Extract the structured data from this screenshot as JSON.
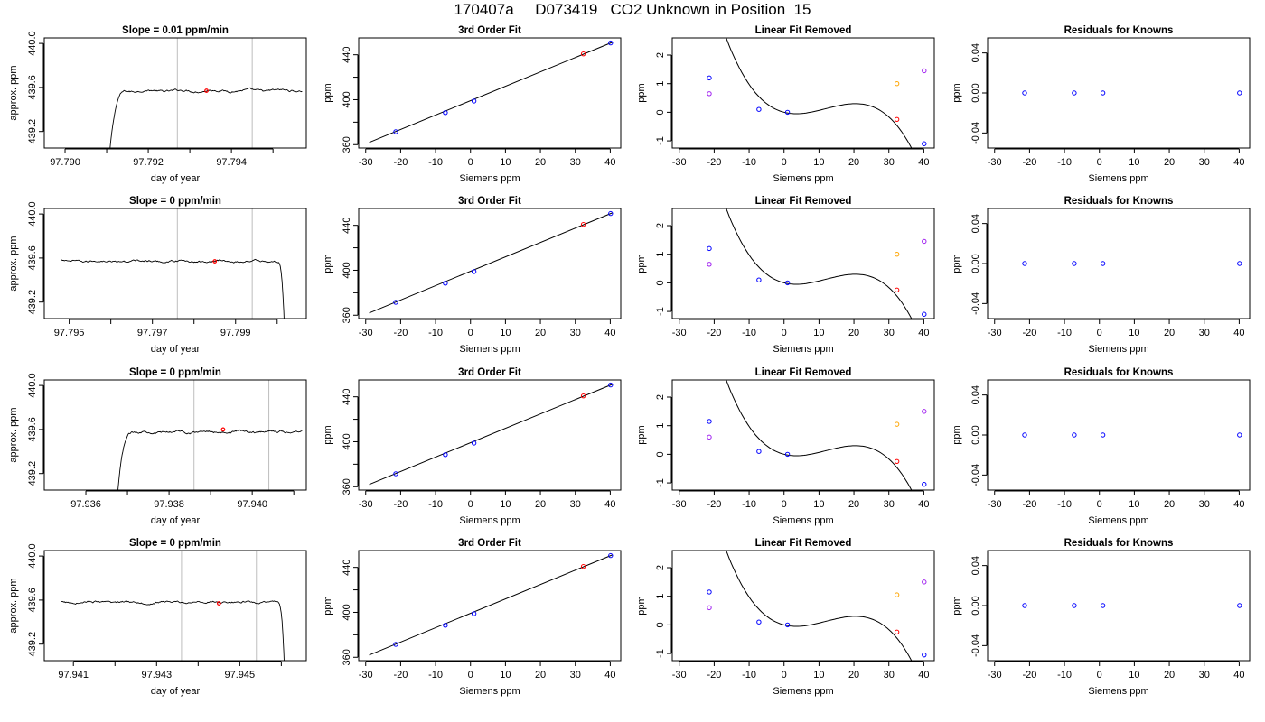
{
  "title": "170407a     D073419   CO2 Unknown in Position  15",
  "colors": {
    "trace": "#000000",
    "marker": "#ff0000",
    "vline": "#bebebe",
    "known": "#0000ff",
    "orange": "#ffa500",
    "purple": "#a020f0",
    "axis": "#000000"
  },
  "chart_data": [
    {
      "type": "line",
      "row": 1,
      "col": 1,
      "title": "Slope =  0.01  ppm/min",
      "xlabel": "day of year",
      "ylabel": "approx. ppm",
      "xlim": [
        97.7895,
        97.7958
      ],
      "ylim": [
        439.05,
        440.05
      ],
      "xticks": [
        97.79,
        97.791,
        97.792,
        97.793,
        97.794,
        97.795
      ],
      "xticklabels": [
        "97.790",
        "",
        "97.792",
        "",
        "97.794",
        ""
      ],
      "yticks": [
        439.2,
        439.6,
        440.0
      ],
      "yticklabels": [
        "439.2",
        "439.6",
        "440.0"
      ],
      "vlines": [
        97.7927,
        97.7945
      ],
      "marker": {
        "x": 97.7934,
        "y": 439.57
      },
      "trace_shape": "rise",
      "trace": {
        "x_start": 97.791,
        "x_end": 97.7957,
        "base": 439.57,
        "rise_width": 0.0005,
        "trend": 0.005
      }
    },
    {
      "type": "line",
      "row": 2,
      "col": 1,
      "title": "Slope =  0  ppm/min",
      "xlabel": "day of year",
      "ylabel": "approx. ppm",
      "xlim": [
        97.7944,
        97.8007
      ],
      "ylim": [
        439.05,
        440.05
      ],
      "xticks": [
        97.795,
        97.796,
        97.797,
        97.798,
        97.799,
        97.8
      ],
      "xticklabels": [
        "97.795",
        "",
        "97.797",
        "",
        "97.799",
        ""
      ],
      "yticks": [
        439.2,
        439.6,
        440.0
      ],
      "yticklabels": [
        "439.2",
        "439.6",
        "440.0"
      ],
      "vlines": [
        97.7976,
        97.7994
      ],
      "marker": {
        "x": 97.7985,
        "y": 439.57
      },
      "trace_shape": "drop",
      "trace": {
        "x_start": 97.7948,
        "x_end": 97.8002,
        "base": 439.57,
        "rise_width": 0.0002,
        "trend": 0.0
      }
    },
    {
      "type": "line",
      "row": 3,
      "col": 1,
      "title": "Slope =  0  ppm/min",
      "xlabel": "day of year",
      "ylabel": "approx. ppm",
      "xlim": [
        97.935,
        97.9413
      ],
      "ylim": [
        439.05,
        440.05
      ],
      "xticks": [
        97.936,
        97.937,
        97.938,
        97.939,
        97.94,
        97.941
      ],
      "xticklabels": [
        "97.936",
        "",
        "97.938",
        "",
        "97.940",
        ""
      ],
      "yticks": [
        439.2,
        439.6,
        440.0
      ],
      "yticklabels": [
        "439.2",
        "439.6",
        "440.0"
      ],
      "vlines": [
        97.9386,
        97.9404
      ],
      "marker": {
        "x": 97.9393,
        "y": 439.6
      },
      "trace_shape": "rise",
      "trace": {
        "x_start": 97.9367,
        "x_end": 97.9412,
        "base": 439.58,
        "rise_width": 0.00045,
        "trend": 0.01
      }
    },
    {
      "type": "line",
      "row": 4,
      "col": 1,
      "title": "Slope =  0  ppm/min",
      "xlabel": "day of year",
      "ylabel": "approx. ppm",
      "xlim": [
        97.9403,
        97.9466
      ],
      "ylim": [
        439.05,
        440.05
      ],
      "xticks": [
        97.941,
        97.942,
        97.943,
        97.944,
        97.945,
        97.946
      ],
      "xticklabels": [
        "97.941",
        "",
        "97.943",
        "",
        "97.945",
        ""
      ],
      "yticks": [
        439.2,
        439.6,
        440.0
      ],
      "yticklabels": [
        "439.2",
        "439.6",
        "440.0"
      ],
      "vlines": [
        97.9436,
        97.9454
      ],
      "marker": {
        "x": 97.9445,
        "y": 439.57
      },
      "trace_shape": "drop",
      "trace": {
        "x_start": 97.9407,
        "x_end": 97.9461,
        "base": 439.58,
        "rise_width": 0.0002,
        "trend": 0.0
      }
    },
    {
      "type": "scatter",
      "row": 1,
      "col": 2,
      "title": "3rd Order Fit",
      "xlabel": "Siemens ppm",
      "ylabel": "ppm",
      "xlim": [
        -32,
        43
      ],
      "ylim": [
        357,
        455
      ],
      "xticks": [
        -30,
        -20,
        -10,
        0,
        10,
        20,
        30,
        40
      ],
      "xticklabels": [
        "-30",
        "-20",
        "-10",
        "0",
        "10",
        "20",
        "30",
        "40"
      ],
      "yticks": [
        360,
        380,
        400,
        420,
        440
      ],
      "yticklabels": [
        "360",
        "",
        "400",
        "",
        "440"
      ],
      "line": {
        "x": [
          -29,
          40.5
        ],
        "y": [
          362,
          451
        ]
      },
      "knowns": {
        "x": [
          -21.4,
          -7.2,
          1.0,
          40.1
        ],
        "y": [
          371.5,
          388.5,
          398.8,
          450.5
        ]
      },
      "unknown": {
        "x": [
          32.3
        ],
        "y": [
          440.8
        ]
      }
    },
    {
      "type": "scatter",
      "row": 2,
      "col": 2,
      "title": "3rd Order Fit",
      "xlabel": "Siemens ppm",
      "ylabel": "ppm",
      "xlim": [
        -32,
        43
      ],
      "ylim": [
        357,
        455
      ],
      "xticks": [
        -30,
        -20,
        -10,
        0,
        10,
        20,
        30,
        40
      ],
      "xticklabels": [
        "-30",
        "-20",
        "-10",
        "0",
        "10",
        "20",
        "30",
        "40"
      ],
      "yticks": [
        360,
        380,
        400,
        420,
        440
      ],
      "yticklabels": [
        "360",
        "",
        "400",
        "",
        "440"
      ],
      "line": {
        "x": [
          -29,
          40.5
        ],
        "y": [
          362,
          451
        ]
      },
      "knowns": {
        "x": [
          -21.4,
          -7.2,
          1.0,
          40.1
        ],
        "y": [
          371.5,
          388.5,
          398.8,
          450.5
        ]
      },
      "unknown": {
        "x": [
          32.3
        ],
        "y": [
          440.8
        ]
      }
    },
    {
      "type": "scatter",
      "row": 3,
      "col": 2,
      "title": "3rd Order Fit",
      "xlabel": "Siemens ppm",
      "ylabel": "ppm",
      "xlim": [
        -32,
        43
      ],
      "ylim": [
        357,
        455
      ],
      "xticks": [
        -30,
        -20,
        -10,
        0,
        10,
        20,
        30,
        40
      ],
      "xticklabels": [
        "-30",
        "-20",
        "-10",
        "0",
        "10",
        "20",
        "30",
        "40"
      ],
      "yticks": [
        360,
        380,
        400,
        420,
        440
      ],
      "yticklabels": [
        "360",
        "",
        "400",
        "",
        "440"
      ],
      "line": {
        "x": [
          -29,
          40.5
        ],
        "y": [
          362,
          451
        ]
      },
      "knowns": {
        "x": [
          -21.4,
          -7.2,
          1.0,
          40.1
        ],
        "y": [
          371.5,
          388.5,
          398.8,
          450.5
        ]
      },
      "unknown": {
        "x": [
          32.3
        ],
        "y": [
          440.8
        ]
      }
    },
    {
      "type": "scatter",
      "row": 4,
      "col": 2,
      "title": "3rd Order Fit",
      "xlabel": "Siemens ppm",
      "ylabel": "ppm",
      "xlim": [
        -32,
        43
      ],
      "ylim": [
        357,
        455
      ],
      "xticks": [
        -30,
        -20,
        -10,
        0,
        10,
        20,
        30,
        40
      ],
      "xticklabels": [
        "-30",
        "-20",
        "-10",
        "0",
        "10",
        "20",
        "30",
        "40"
      ],
      "yticks": [
        360,
        380,
        400,
        420,
        440
      ],
      "yticklabels": [
        "360",
        "",
        "400",
        "",
        "440"
      ],
      "line": {
        "x": [
          -29,
          40.5
        ],
        "y": [
          362,
          451
        ]
      },
      "knowns": {
        "x": [
          -21.4,
          -7.2,
          1.0,
          40.1
        ],
        "y": [
          371.5,
          388.5,
          398.8,
          450.5
        ]
      },
      "unknown": {
        "x": [
          32.3
        ],
        "y": [
          440.8
        ]
      }
    },
    {
      "type": "scatter",
      "row": 1,
      "col": 3,
      "title": "Linear Fit Removed",
      "xlabel": "Siemens ppm",
      "ylabel": "ppm",
      "xlim": [
        -32,
        43
      ],
      "ylim": [
        -1.25,
        2.6
      ],
      "xticks": [
        -30,
        -20,
        -10,
        0,
        10,
        20,
        30,
        40
      ],
      "xticklabels": [
        "-30",
        "-20",
        "-10",
        "0",
        "10",
        "20",
        "30",
        "40"
      ],
      "yticks": [
        -1,
        0,
        1,
        2
      ],
      "yticklabels": [
        "-1",
        "0",
        "1",
        "2"
      ],
      "curve": {
        "x_range": [
          -29,
          40.5
        ],
        "coeffs": [
          0.0,
          -0.031,
          0.0052,
          -0.000145
        ]
      },
      "knowns": {
        "x": [
          -21.4,
          -7.2,
          1.0,
          40.1
        ],
        "y": [
          1.2,
          0.1,
          0.0,
          -1.1
        ]
      },
      "unknown": {
        "x": [
          32.3
        ],
        "y": [
          -0.25
        ]
      },
      "purple_points": {
        "x": [
          -21.4,
          40.1
        ],
        "y": [
          0.65,
          1.45
        ]
      },
      "orange_points": {
        "x": [
          32.3
        ],
        "y": [
          1.0
        ]
      }
    },
    {
      "type": "scatter",
      "row": 2,
      "col": 3,
      "title": "Linear Fit Removed",
      "xlabel": "Siemens ppm",
      "ylabel": "ppm",
      "xlim": [
        -32,
        43
      ],
      "ylim": [
        -1.25,
        2.6
      ],
      "xticks": [
        -30,
        -20,
        -10,
        0,
        10,
        20,
        30,
        40
      ],
      "xticklabels": [
        "-30",
        "-20",
        "-10",
        "0",
        "10",
        "20",
        "30",
        "40"
      ],
      "yticks": [
        -1,
        0,
        1,
        2
      ],
      "yticklabels": [
        "-1",
        "0",
        "1",
        "2"
      ],
      "curve": {
        "x_range": [
          -29,
          40.5
        ],
        "coeffs": [
          0.0,
          -0.031,
          0.0052,
          -0.000145
        ]
      },
      "knowns": {
        "x": [
          -21.4,
          -7.2,
          1.0,
          40.1
        ],
        "y": [
          1.2,
          0.1,
          0.0,
          -1.1
        ]
      },
      "unknown": {
        "x": [
          32.3
        ],
        "y": [
          -0.25
        ]
      },
      "purple_points": {
        "x": [
          -21.4,
          40.1
        ],
        "y": [
          0.65,
          1.45
        ]
      },
      "orange_points": {
        "x": [
          32.3
        ],
        "y": [
          1.0
        ]
      }
    },
    {
      "type": "scatter",
      "row": 3,
      "col": 3,
      "title": "Linear Fit Removed",
      "xlabel": "Siemens ppm",
      "ylabel": "ppm",
      "xlim": [
        -32,
        43
      ],
      "ylim": [
        -1.25,
        2.6
      ],
      "xticks": [
        -30,
        -20,
        -10,
        0,
        10,
        20,
        30,
        40
      ],
      "xticklabels": [
        "-30",
        "-20",
        "-10",
        "0",
        "10",
        "20",
        "30",
        "40"
      ],
      "yticks": [
        -1,
        0,
        1,
        2
      ],
      "yticklabels": [
        "-1",
        "0",
        "1",
        "2"
      ],
      "curve": {
        "x_range": [
          -29,
          40.5
        ],
        "coeffs": [
          0.0,
          -0.031,
          0.0052,
          -0.000145
        ]
      },
      "knowns": {
        "x": [
          -21.4,
          -7.2,
          1.0,
          40.1
        ],
        "y": [
          1.15,
          0.1,
          0.0,
          -1.05
        ]
      },
      "unknown": {
        "x": [
          32.3
        ],
        "y": [
          -0.25
        ]
      },
      "purple_points": {
        "x": [
          -21.4,
          40.1
        ],
        "y": [
          0.6,
          1.5
        ]
      },
      "orange_points": {
        "x": [
          32.3
        ],
        "y": [
          1.05
        ]
      }
    },
    {
      "type": "scatter",
      "row": 4,
      "col": 3,
      "title": "Linear Fit Removed",
      "xlabel": "Siemens ppm",
      "ylabel": "ppm",
      "xlim": [
        -32,
        43
      ],
      "ylim": [
        -1.25,
        2.6
      ],
      "xticks": [
        -30,
        -20,
        -10,
        0,
        10,
        20,
        30,
        40
      ],
      "xticklabels": [
        "-30",
        "-20",
        "-10",
        "0",
        "10",
        "20",
        "30",
        "40"
      ],
      "yticks": [
        -1,
        0,
        1,
        2
      ],
      "yticklabels": [
        "-1",
        "0",
        "1",
        "2"
      ],
      "curve": {
        "x_range": [
          -29,
          40.5
        ],
        "coeffs": [
          0.0,
          -0.031,
          0.0052,
          -0.000145
        ]
      },
      "knowns": {
        "x": [
          -21.4,
          -7.2,
          1.0,
          40.1
        ],
        "y": [
          1.15,
          0.1,
          0.0,
          -1.05
        ]
      },
      "unknown": {
        "x": [
          32.3
        ],
        "y": [
          -0.25
        ]
      },
      "purple_points": {
        "x": [
          -21.4,
          40.1
        ],
        "y": [
          0.6,
          1.5
        ]
      },
      "orange_points": {
        "x": [
          32.3
        ],
        "y": [
          1.05
        ]
      }
    },
    {
      "type": "scatter",
      "row": 1,
      "col": 4,
      "title": "Residuals for Knowns",
      "xlabel": "Siemens ppm",
      "ylabel": "ppm",
      "xlim": [
        -32,
        43
      ],
      "ylim": [
        -0.055,
        0.055
      ],
      "xticks": [
        -30,
        -20,
        -10,
        0,
        10,
        20,
        30,
        40
      ],
      "xticklabels": [
        "-30",
        "-20",
        "-10",
        "0",
        "10",
        "20",
        "30",
        "40"
      ],
      "yticks": [
        -0.04,
        0.0,
        0.04
      ],
      "yticklabels": [
        "-0.04",
        "0.00",
        "0.04"
      ],
      "knowns": {
        "x": [
          -21.4,
          -7.2,
          1.0,
          40.1
        ],
        "y": [
          0.0,
          0.0,
          0.0,
          0.0
        ]
      }
    },
    {
      "type": "scatter",
      "row": 2,
      "col": 4,
      "title": "Residuals for Knowns",
      "xlabel": "Siemens ppm",
      "ylabel": "ppm",
      "xlim": [
        -32,
        43
      ],
      "ylim": [
        -0.055,
        0.055
      ],
      "xticks": [
        -30,
        -20,
        -10,
        0,
        10,
        20,
        30,
        40
      ],
      "xticklabels": [
        "-30",
        "-20",
        "-10",
        "0",
        "10",
        "20",
        "30",
        "40"
      ],
      "yticks": [
        -0.04,
        0.0,
        0.04
      ],
      "yticklabels": [
        "-0.04",
        "0.00",
        "0.04"
      ],
      "knowns": {
        "x": [
          -21.4,
          -7.2,
          1.0,
          40.1
        ],
        "y": [
          0.0,
          0.0,
          0.0,
          0.0
        ]
      }
    },
    {
      "type": "scatter",
      "row": 3,
      "col": 4,
      "title": "Residuals for Knowns",
      "xlabel": "Siemens ppm",
      "ylabel": "ppm",
      "xlim": [
        -32,
        43
      ],
      "ylim": [
        -0.055,
        0.055
      ],
      "xticks": [
        -30,
        -20,
        -10,
        0,
        10,
        20,
        30,
        40
      ],
      "xticklabels": [
        "-30",
        "-20",
        "-10",
        "0",
        "10",
        "20",
        "30",
        "40"
      ],
      "yticks": [
        -0.04,
        0.0,
        0.04
      ],
      "yticklabels": [
        "-0.04",
        "0.00",
        "0.04"
      ],
      "knowns": {
        "x": [
          -21.4,
          -7.2,
          1.0,
          40.1
        ],
        "y": [
          0.0,
          0.0,
          0.0,
          0.0
        ]
      }
    },
    {
      "type": "scatter",
      "row": 4,
      "col": 4,
      "title": "Residuals for Knowns",
      "xlabel": "Siemens ppm",
      "ylabel": "ppm",
      "xlim": [
        -32,
        43
      ],
      "ylim": [
        -0.055,
        0.055
      ],
      "xticks": [
        -30,
        -20,
        -10,
        0,
        10,
        20,
        30,
        40
      ],
      "xticklabels": [
        "-30",
        "-20",
        "-10",
        "0",
        "10",
        "20",
        "30",
        "40"
      ],
      "yticks": [
        -0.04,
        0.0,
        0.04
      ],
      "yticklabels": [
        "-0.04",
        "0.00",
        "0.04"
      ],
      "knowns": {
        "x": [
          -21.4,
          -7.2,
          1.0,
          40.1
        ],
        "y": [
          0.0,
          0.0,
          0.0,
          0.0
        ]
      }
    }
  ]
}
